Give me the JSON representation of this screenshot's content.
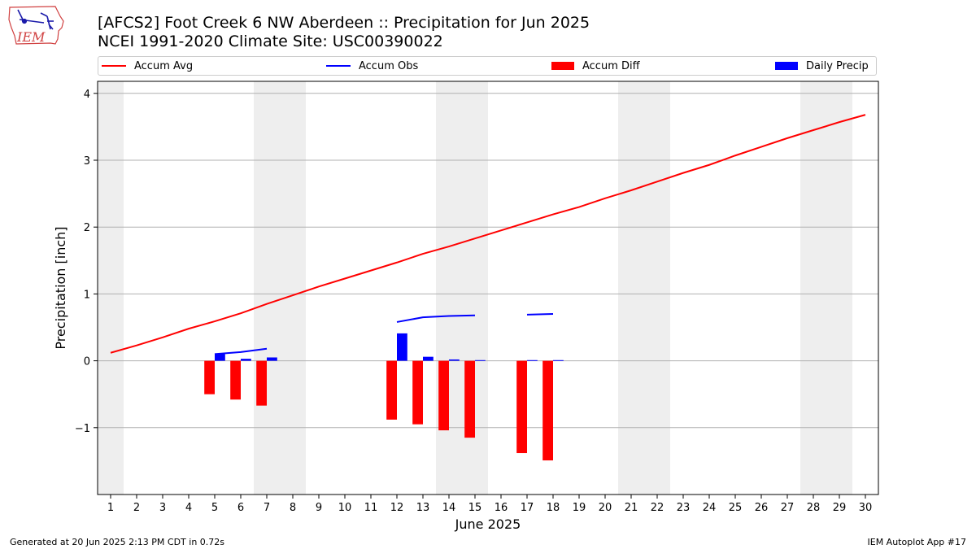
{
  "header": {
    "title_line1": "[AFCS2] Foot Creek 6 NW Aberdeen :: Precipitation for Jun 2025",
    "title_line2": "NCEI 1991-2020 Climate Site: USC00390022",
    "logo_text": "IEM"
  },
  "footer": {
    "generated": "Generated at 20 Jun 2025 2:13 PM CDT in 0.72s",
    "app": "IEM Autoplot App #17"
  },
  "colors": {
    "avg": "#ff0000",
    "obs": "#0000ff",
    "diff": "#ff0000",
    "precip": "#0000ff",
    "weekend_shade": "#eeeeee",
    "grid": "#b0b0b0"
  },
  "chart_data": {
    "type": "bar",
    "title": "[AFCS2] Foot Creek 6 NW Aberdeen :: Precipitation for Jun 2025",
    "subtitle": "NCEI 1991-2020 Climate Site: USC00390022",
    "xlabel": "June 2025",
    "ylabel": "Precipitation [inch]",
    "x": [
      1,
      2,
      3,
      4,
      5,
      6,
      7,
      8,
      9,
      10,
      11,
      12,
      13,
      14,
      15,
      16,
      17,
      18,
      19,
      20,
      21,
      22,
      23,
      24,
      25,
      26,
      27,
      28,
      29,
      30
    ],
    "xlim": [
      0.5,
      30.5
    ],
    "ylim": [
      -2.0,
      4.18
    ],
    "yticks": [
      4,
      3,
      2,
      1,
      0,
      -1
    ],
    "ytick_labels": [
      "4",
      "3",
      "2",
      "1",
      "0",
      "−1"
    ],
    "grid": "y",
    "legend_position": "top",
    "weekend_shading": [
      [
        0.5,
        1.5
      ],
      [
        6.5,
        8.5
      ],
      [
        13.5,
        15.5
      ],
      [
        20.5,
        22.5
      ],
      [
        27.5,
        29.5
      ]
    ],
    "series": [
      {
        "name": "Accum Avg",
        "kind": "line",
        "x": [
          1,
          2,
          3,
          4,
          5,
          6,
          7,
          8,
          9,
          10,
          11,
          12,
          13,
          14,
          15,
          16,
          17,
          18,
          19,
          20,
          21,
          22,
          23,
          24,
          25,
          26,
          27,
          28,
          29,
          30
        ],
        "values": [
          0.12,
          0.23,
          0.35,
          0.48,
          0.59,
          0.71,
          0.85,
          0.98,
          1.11,
          1.23,
          1.35,
          1.47,
          1.6,
          1.71,
          1.83,
          1.95,
          2.07,
          2.19,
          2.3,
          2.43,
          2.55,
          2.68,
          2.81,
          2.93,
          3.07,
          3.2,
          3.33,
          3.45,
          3.57,
          3.68
        ]
      },
      {
        "name": "Accum Obs",
        "kind": "line",
        "segments": [
          {
            "x": [
              5,
              6,
              7
            ],
            "values": [
              0.1,
              0.13,
              0.18
            ]
          },
          {
            "x": [
              12,
              13,
              14,
              15
            ],
            "values": [
              0.58,
              0.65,
              0.67,
              0.68
            ]
          },
          {
            "x": [
              17,
              18
            ],
            "values": [
              0.69,
              0.7
            ]
          }
        ]
      },
      {
        "name": "Accum Diff",
        "kind": "bar",
        "x": [
          5,
          6,
          7,
          12,
          13,
          14,
          15,
          17,
          18
        ],
        "values": [
          -0.5,
          -0.58,
          -0.67,
          -0.88,
          -0.95,
          -1.04,
          -1.15,
          -1.38,
          -1.49
        ]
      },
      {
        "name": "Daily Precip",
        "kind": "bar",
        "x": [
          5,
          6,
          7,
          12,
          13,
          14,
          15,
          17,
          18
        ],
        "values": [
          0.1,
          0.03,
          0.05,
          0.41,
          0.06,
          0.02,
          0.01,
          0.01,
          0.01
        ]
      }
    ]
  }
}
